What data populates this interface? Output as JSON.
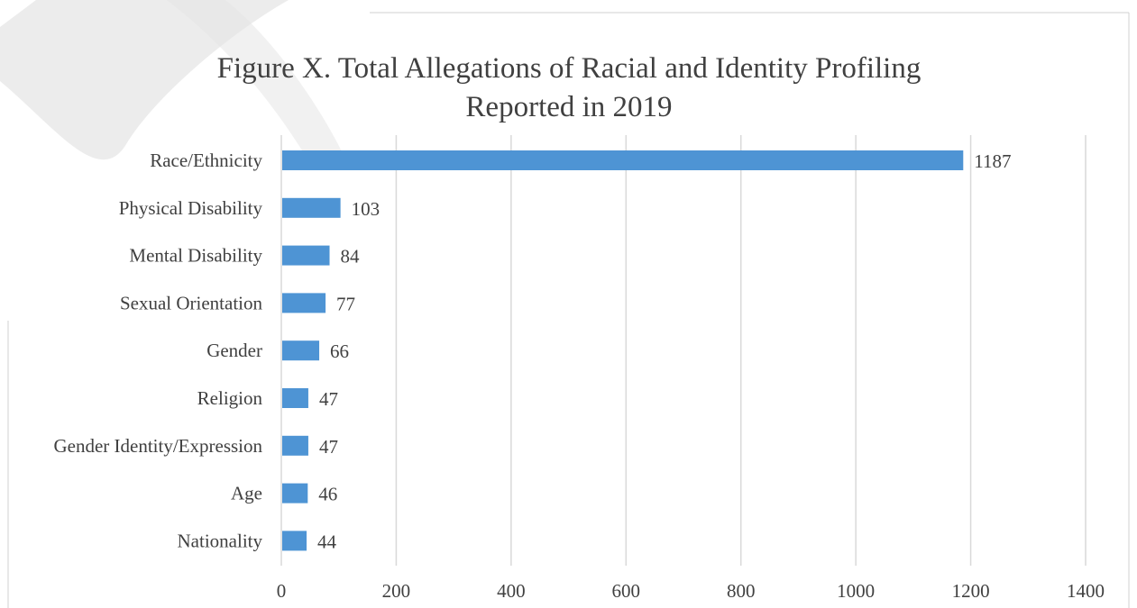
{
  "chart_data": {
    "type": "bar",
    "orientation": "horizontal",
    "title_lines": [
      "Figure X. Total Allegations of Racial and Identity Profiling",
      "Reported in 2019"
    ],
    "categories": [
      "Race/Ethnicity",
      "Physical Disability",
      "Mental Disability",
      "Sexual Orientation",
      "Gender",
      "Religion",
      "Gender Identity/Expression",
      "Age",
      "Nationality"
    ],
    "values": [
      1187,
      103,
      84,
      77,
      66,
      47,
      47,
      46,
      44
    ],
    "xlim": [
      0,
      1400
    ],
    "xticks": [
      0,
      200,
      400,
      600,
      800,
      1000,
      1200,
      1400
    ],
    "xlabel": "",
    "ylabel": "",
    "grid": true,
    "data_labels": true,
    "legend": "none",
    "colors": {
      "bar": "#4e94d4",
      "grid": "#d9d9d9",
      "text": "#404040",
      "border": "#d0d0d0",
      "watermark": "#e6e6e6"
    }
  }
}
